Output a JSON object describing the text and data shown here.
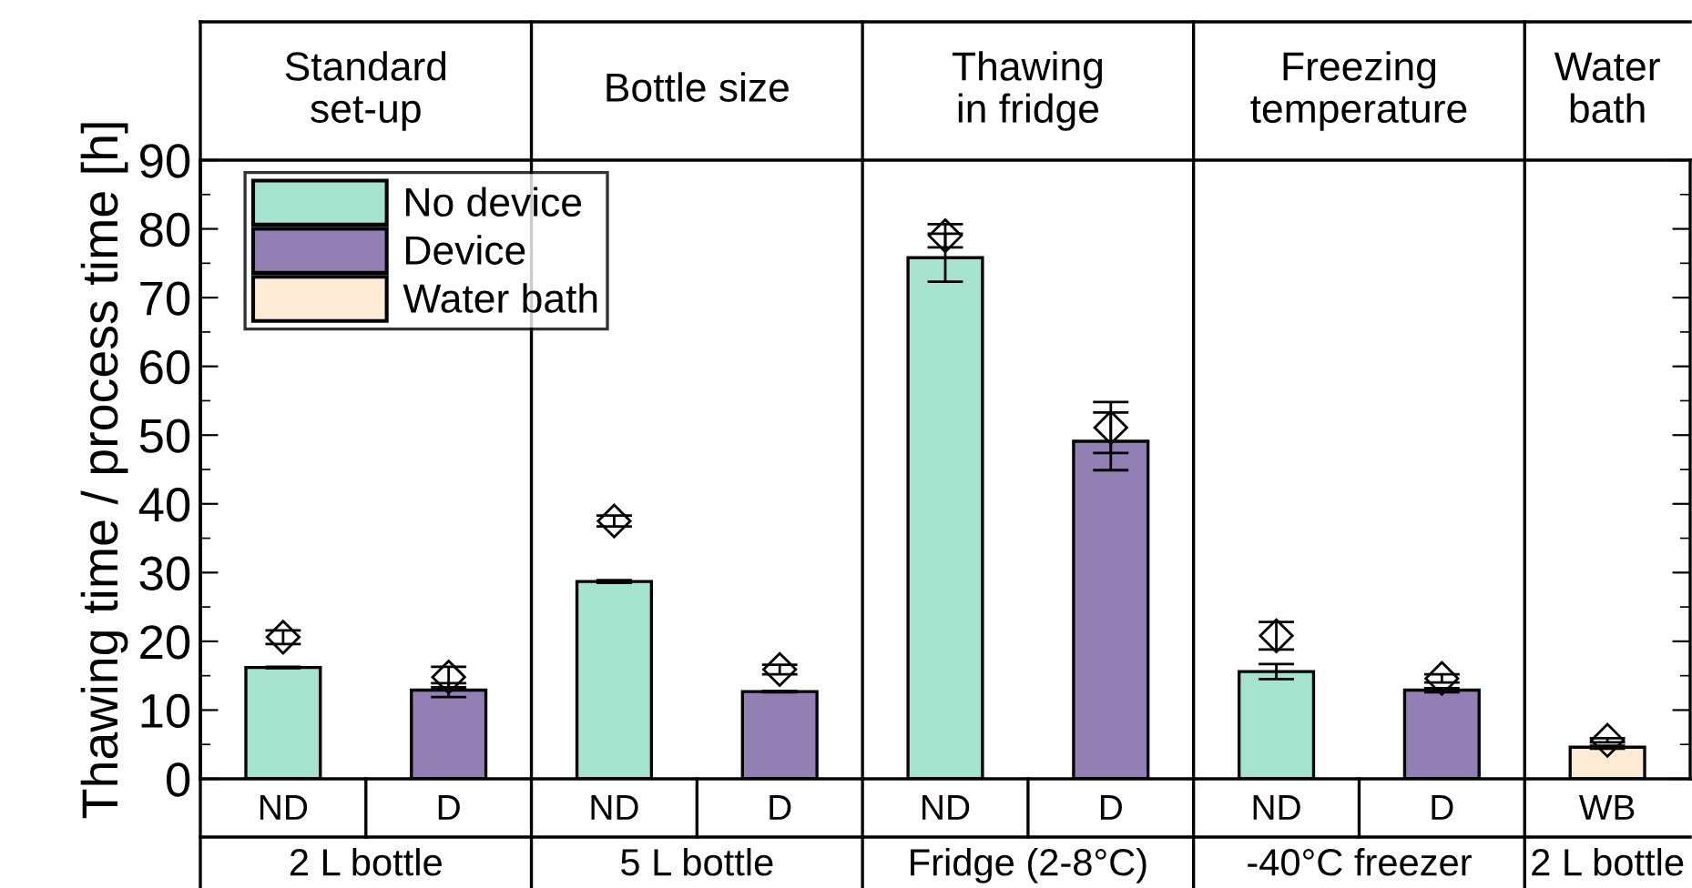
{
  "chart_data": {
    "type": "bar",
    "ylabel": "Thawing time / process time [h]",
    "categories": [
      "ND",
      "D",
      "ND",
      "D",
      "ND",
      "D",
      "ND",
      "D",
      "WB"
    ],
    "series": [
      {
        "name": "No device",
        "color": "#a6e3cf",
        "values": [
          16.2,
          null,
          28.7,
          null,
          75.8,
          null,
          15.6,
          null,
          null
        ],
        "errors": [
          0.1,
          null,
          0.2,
          null,
          3.5,
          null,
          1.1,
          null,
          null
        ]
      },
      {
        "name": "Device",
        "color": "#9280b4",
        "values": [
          null,
          12.9,
          null,
          12.7,
          null,
          49.1,
          null,
          12.9,
          null
        ],
        "errors": [
          null,
          1.0,
          null,
          0.1,
          null,
          4.2,
          null,
          0.3,
          null
        ]
      },
      {
        "name": "Water bath",
        "color": "#fdebd6",
        "values": [
          null,
          null,
          null,
          null,
          null,
          null,
          null,
          null,
          4.6
        ],
        "errors": [
          null,
          null,
          null,
          null,
          null,
          null,
          null,
          null,
          0.2
        ]
      },
      {
        "type": "scatter",
        "marker": "diamond",
        "color": "#000000",
        "values": [
          20.6,
          14.8,
          37.5,
          15.9,
          79.0,
          51.1,
          20.8,
          14.6,
          5.6
        ],
        "errors": [
          1.0,
          1.5,
          0.8,
          0.7,
          1.7,
          3.7,
          2.0,
          0.6,
          0.3
        ]
      }
    ],
    "ylim": [
      0,
      90
    ],
    "yticks": [
      0,
      10,
      20,
      30,
      40,
      50,
      60,
      70,
      80,
      90
    ],
    "legend": "top left",
    "grid": false,
    "annotations": [
      "Standard\nset-up",
      "Bottle size",
      "Thawing\nin fridge",
      "Freezing\ntemperature",
      "Water\nbath",
      "2 L bottle",
      "5 L bottle",
      "Fridge (2-8°C)",
      "-40°C freezer",
      "2 L bottle"
    ]
  }
}
